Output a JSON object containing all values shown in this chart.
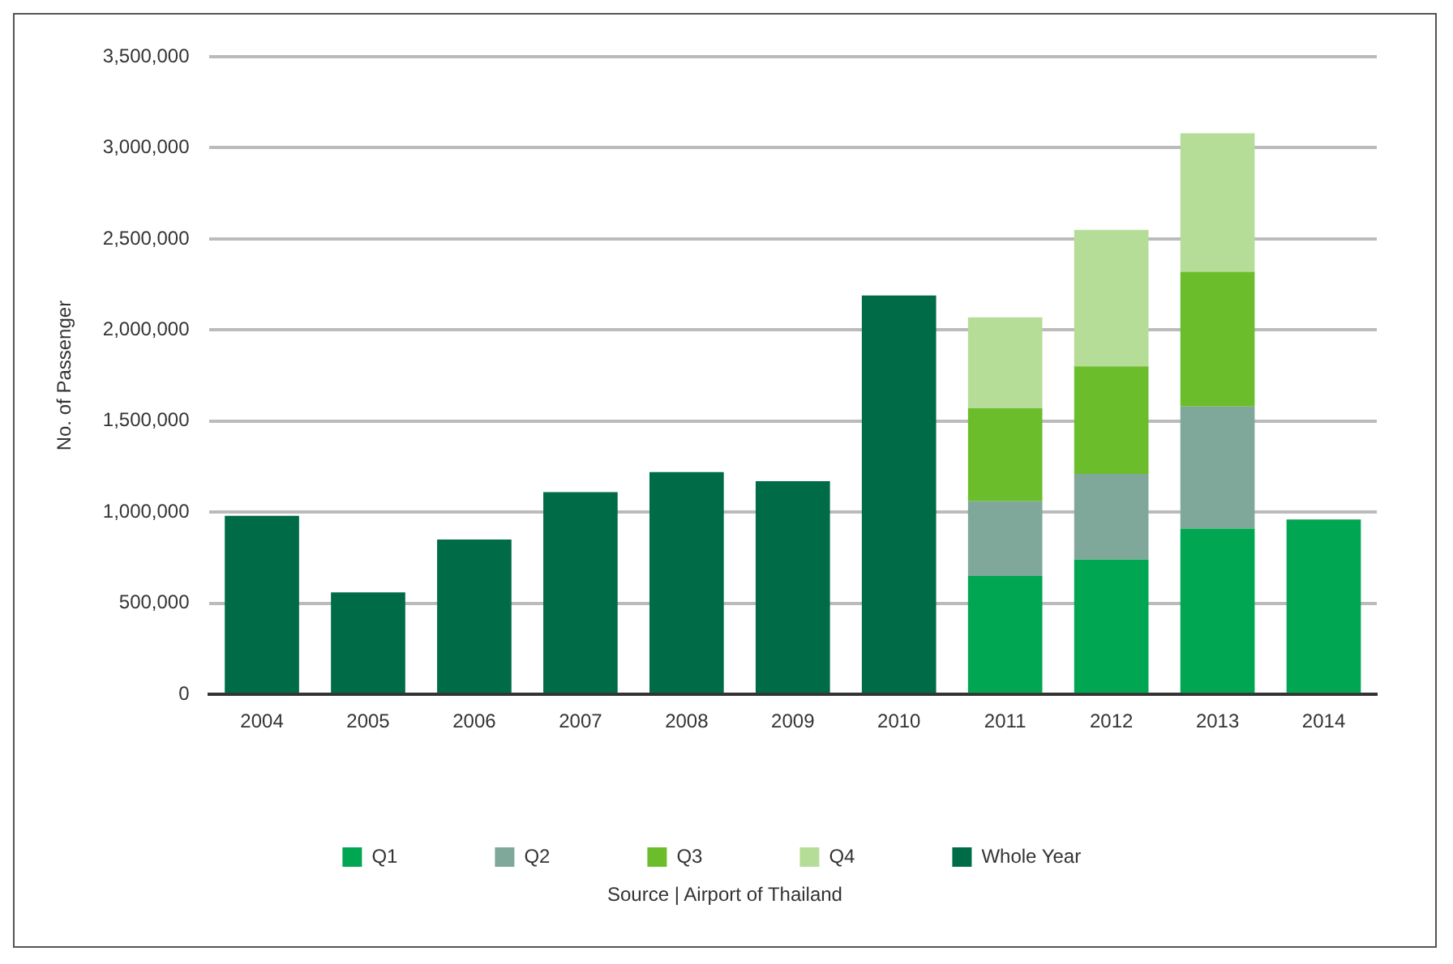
{
  "chart_data": {
    "type": "bar",
    "ylabel": "No. of Passenger",
    "stacked": true,
    "legend": "bottom",
    "grid": "y",
    "categories": [
      "2004",
      "2005",
      "2006",
      "2007",
      "2008",
      "2009",
      "2010",
      "2011",
      "2012",
      "2013",
      "2014"
    ],
    "series": [
      {
        "name": "Q1",
        "color": "#00a651",
        "values": [
          null,
          null,
          null,
          null,
          null,
          null,
          null,
          650000,
          740000,
          910000,
          960000
        ]
      },
      {
        "name": "Q2",
        "color": "#7fa89a",
        "values": [
          null,
          null,
          null,
          null,
          null,
          null,
          null,
          410000,
          470000,
          670000,
          null
        ]
      },
      {
        "name": "Q3",
        "color": "#6cbd2b",
        "values": [
          null,
          null,
          null,
          null,
          null,
          null,
          null,
          510000,
          590000,
          740000,
          null
        ]
      },
      {
        "name": "Q4",
        "color": "#b5dd98",
        "values": [
          null,
          null,
          null,
          null,
          null,
          null,
          null,
          500000,
          750000,
          760000,
          null
        ]
      },
      {
        "name": "Whole Year",
        "color": "#006b47",
        "values": [
          980000,
          560000,
          850000,
          1110000,
          1220000,
          1170000,
          2190000,
          null,
          null,
          null,
          null
        ]
      }
    ],
    "ylim": [
      0,
      3500000
    ],
    "yticks": [
      {
        "value": 0,
        "label": "0"
      },
      {
        "value": 500000,
        "label": "500,000"
      },
      {
        "value": 1000000,
        "label": "1,000,000"
      },
      {
        "value": 1500000,
        "label": "1,500,000"
      },
      {
        "value": 2000000,
        "label": "2,000,000"
      },
      {
        "value": 2500000,
        "label": "2,500,000"
      },
      {
        "value": 3000000,
        "label": "3,000,000"
      },
      {
        "value": 3500000,
        "label": "3,500,000"
      }
    ],
    "annotations": [
      "Source | Airport of Thailand"
    ]
  }
}
